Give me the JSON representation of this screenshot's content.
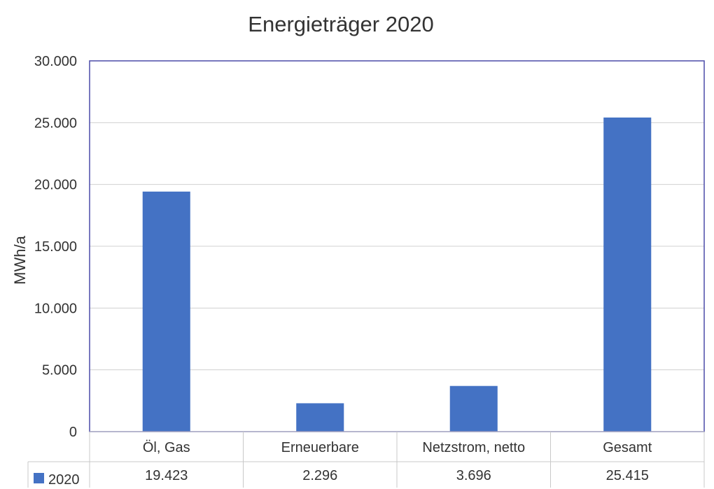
{
  "chart_data": {
    "type": "bar",
    "title": "Energieträger 2020",
    "ylabel": "MWh/a",
    "xlabel": "",
    "categories": [
      "Öl, Gas",
      "Erneuerbare",
      "Netzstrom, netto",
      "Gesamt"
    ],
    "series": [
      {
        "name": "2020",
        "values": [
          19423,
          2296,
          3696,
          25415
        ],
        "color": "#4472C4"
      }
    ],
    "value_labels": [
      "19.423",
      "2.296",
      "3.696",
      "25.415"
    ],
    "ylim": [
      0,
      30000
    ],
    "yticks": [
      0,
      5000,
      10000,
      15000,
      20000,
      25000,
      30000
    ],
    "ytick_labels": [
      "0",
      "5.000",
      "10.000",
      "15.000",
      "20.000",
      "25.000",
      "30.000"
    ],
    "grid": true,
    "legend": "data-table-left",
    "data_table": true
  },
  "colors": {
    "plot_border": "#4B4BA8",
    "gridline": "#D0D0D0",
    "table_line": "#C8C8C8"
  }
}
